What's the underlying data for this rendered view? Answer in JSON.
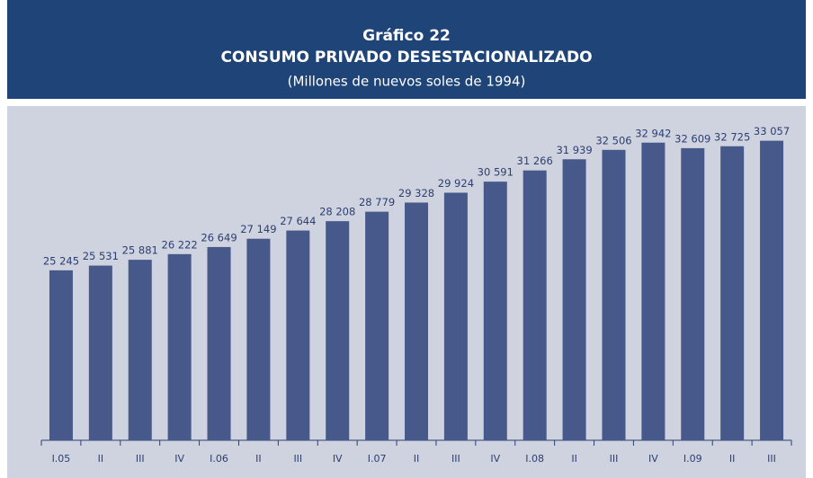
{
  "chart_data": {
    "type": "bar",
    "title": "Gráfico 22",
    "subtitle": "CONSUMO PRIVADO DESESTACIONALIZADO",
    "note": "(Millones de nuevos soles de 1994)",
    "categories": [
      "I.05",
      "II",
      "III",
      "IV",
      "I.06",
      "II",
      "III",
      "IV",
      "I.07",
      "II",
      "III",
      "IV",
      "I.08",
      "II",
      "III",
      "IV",
      "I.09",
      "II",
      "III"
    ],
    "values": [
      25245,
      25531,
      25881,
      26222,
      26649,
      27149,
      27644,
      28208,
      28779,
      29328,
      29924,
      30591,
      31266,
      31939,
      32506,
      32942,
      32609,
      32725,
      33057
    ],
    "value_labels": [
      "25 245",
      "25 531",
      "25 881",
      "26 222",
      "26 649",
      "27 149",
      "27 644",
      "28 208",
      "28 779",
      "29 328",
      "29 924",
      "30 591",
      "31 266",
      "31 939",
      "32 506",
      "32 942",
      "32 609",
      "32 725",
      "33 057"
    ],
    "color": "#47598a",
    "ylim": [
      15000,
      34500
    ]
  }
}
